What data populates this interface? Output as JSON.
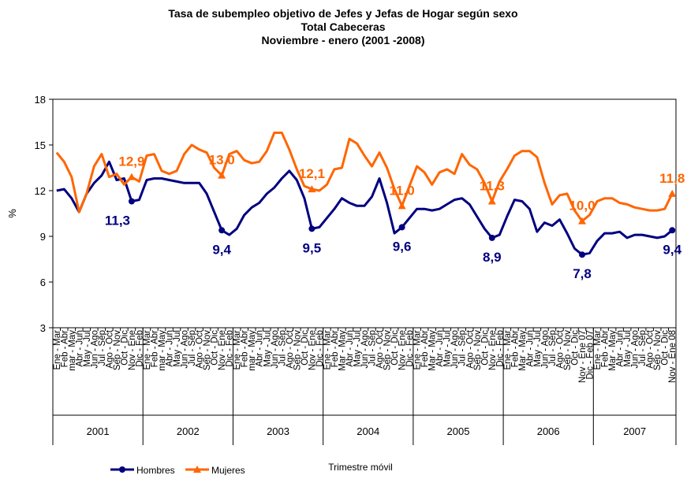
{
  "chart_data": {
    "type": "line",
    "title": [
      "Tasa  de subempleo objetivo de Jefes y Jefas de Hogar según sexo",
      "Total Cabeceras",
      "Noviembre  - enero (2001 -2008)"
    ],
    "y_label": "%",
    "x_label": "Trimestre móvil",
    "categories": [
      "Ene - Mar",
      "Feb - Abr",
      "mar - May",
      "Abr - Jun",
      "May - Jul",
      "Jun - Ago",
      "Jul - Sep",
      "Ago - Oct",
      "Sep - Nov",
      "Oct - Dic",
      "Nov - Ene",
      "Dic - Feb",
      "Ene - Mar",
      "Feb - Abr",
      "mar - May",
      "Abr - Jun",
      "May - Jul",
      "Jun - Ago",
      "Jul - Sep",
      "Ago - Oct",
      "Sep - Nov",
      "Oct - Dic",
      "Nov - Ene",
      "Dic - Feb",
      "Ene - Mar",
      "Feb - Abr",
      "mar - May",
      "Abr - Jun",
      "May - Jul",
      "Jun - Ago",
      "Jul - Sep",
      "Ago - Oct",
      "Sep - Nov",
      "Oct - Dic",
      "Nov - Ene",
      "Dic - Feb",
      "Ene - Mar",
      "Feb - Abr",
      "Mar - May",
      "Abr - Jun",
      "May - Jul",
      "Jun - Ago",
      "Jul - Sep",
      "Ago - Oct",
      "Sep - Nov",
      "Oct - Dic",
      "Nov - Ene",
      "Dic - Feb",
      "Ene - Mar",
      "Feb - Abr",
      "Mar - May",
      "Abr - Jun",
      "May - Jul",
      "Jun - Ago",
      "Jul - Sep",
      "Ago - Oct",
      "Sep - Nov",
      "Oct - Dic",
      "Nov - Ene",
      "Dic - Feb",
      "Ene - Mar",
      "Feb - Abr",
      "Mar - May",
      "Abr - Jun",
      "May - Jul",
      "Jun - Ago",
      "Jul - Sep",
      "Ago - Oct",
      "Sep - Nov",
      "Oct - Dic",
      "Nov - Ene 07",
      "Dic - Feb 07",
      "Ene - Mar",
      "Feb - Abr",
      "Mar - May",
      "Abr - Jun",
      "May - Jul",
      "Jun - Ago",
      "Jul - Sep",
      "Ago - Oct",
      "Sep - Nov",
      "Oct - Dic",
      "Nov - Ene 08"
    ],
    "x_groups": [
      {
        "name": "2001",
        "span": 12
      },
      {
        "name": "2002",
        "span": 12
      },
      {
        "name": "2003",
        "span": 12
      },
      {
        "name": "2004",
        "span": 12
      },
      {
        "name": "2005",
        "span": 12
      },
      {
        "name": "2006",
        "span": 12
      },
      {
        "name": "2007",
        "span": 11
      }
    ],
    "series": [
      {
        "name": "Hombres",
        "color": "#000080",
        "marker": "circle",
        "values": [
          12.0,
          12.1,
          11.5,
          10.6,
          11.8,
          12.5,
          13.0,
          13.9,
          12.7,
          12.8,
          11.3,
          11.4,
          12.7,
          12.8,
          12.8,
          12.7,
          12.6,
          12.5,
          12.5,
          12.5,
          11.8,
          10.6,
          9.4,
          9.1,
          9.5,
          10.4,
          10.9,
          11.2,
          11.8,
          12.2,
          12.8,
          13.3,
          12.7,
          11.5,
          9.5,
          9.6,
          10.2,
          10.8,
          11.5,
          11.2,
          11.0,
          11.0,
          11.6,
          12.8,
          11.2,
          9.2,
          9.6,
          10.2,
          10.8,
          10.8,
          10.7,
          10.8,
          11.1,
          11.4,
          11.5,
          11.1,
          10.3,
          9.5,
          8.9,
          9.1,
          10.3,
          11.4,
          11.3,
          10.8,
          9.3,
          9.9,
          9.7,
          10.1,
          9.2,
          8.2,
          7.8,
          7.9,
          8.7,
          9.2,
          9.2,
          9.3,
          8.9,
          9.1,
          9.1,
          9.0,
          8.9,
          9.0,
          9.4
        ],
        "value_labels": [
          null,
          null,
          null,
          null,
          null,
          null,
          null,
          null,
          null,
          null,
          "11,3",
          null,
          null,
          null,
          null,
          null,
          null,
          null,
          null,
          null,
          null,
          null,
          "9,4",
          null,
          null,
          null,
          null,
          null,
          null,
          null,
          null,
          null,
          null,
          null,
          "9,5",
          null,
          null,
          null,
          null,
          null,
          null,
          null,
          null,
          null,
          null,
          null,
          "9,6",
          null,
          null,
          null,
          null,
          null,
          null,
          null,
          null,
          null,
          null,
          null,
          "8,9",
          null,
          null,
          null,
          null,
          null,
          null,
          null,
          null,
          null,
          null,
          null,
          "7,8",
          null,
          null,
          null,
          null,
          null,
          null,
          null,
          null,
          null,
          null,
          null,
          "9,4"
        ]
      },
      {
        "name": "Mujeres",
        "color": "#FF6600",
        "marker": "triangle",
        "values": [
          14.5,
          13.9,
          12.9,
          10.6,
          11.8,
          13.6,
          14.4,
          12.9,
          13.1,
          12.4,
          12.9,
          12.6,
          14.3,
          14.4,
          13.3,
          13.1,
          13.3,
          14.4,
          15.0,
          14.7,
          14.5,
          13.5,
          13.0,
          14.4,
          14.6,
          14.0,
          13.8,
          13.9,
          14.6,
          15.8,
          15.8,
          14.7,
          13.4,
          12.3,
          12.1,
          12.0,
          12.4,
          13.4,
          13.5,
          15.4,
          15.1,
          14.3,
          13.6,
          14.5,
          13.5,
          12.1,
          11.0,
          12.3,
          13.6,
          13.2,
          12.4,
          13.2,
          13.4,
          13.1,
          14.4,
          13.7,
          13.4,
          12.5,
          11.3,
          12.6,
          13.4,
          14.3,
          14.6,
          14.6,
          14.2,
          12.5,
          11.1,
          11.7,
          11.8,
          10.7,
          10.0,
          10.4,
          11.3,
          11.5,
          11.5,
          11.2,
          11.1,
          10.9,
          10.8,
          10.7,
          10.7,
          10.8,
          11.8
        ],
        "value_labels": [
          null,
          null,
          null,
          null,
          null,
          null,
          null,
          null,
          null,
          null,
          "12,9",
          null,
          null,
          null,
          null,
          null,
          null,
          null,
          null,
          null,
          null,
          null,
          "13,0",
          null,
          null,
          null,
          null,
          null,
          null,
          null,
          null,
          null,
          null,
          null,
          "12,1",
          null,
          null,
          null,
          null,
          null,
          null,
          null,
          null,
          null,
          null,
          null,
          "11,0",
          null,
          null,
          null,
          null,
          null,
          null,
          null,
          null,
          null,
          null,
          null,
          "11,3",
          null,
          null,
          null,
          null,
          null,
          null,
          null,
          null,
          null,
          null,
          null,
          "10,0",
          null,
          null,
          null,
          null,
          null,
          null,
          null,
          null,
          null,
          null,
          null,
          "11,8"
        ]
      }
    ],
    "ylim": [
      3,
      18
    ],
    "yticks": [
      3,
      6,
      9,
      12,
      15,
      18
    ],
    "grid": false
  }
}
